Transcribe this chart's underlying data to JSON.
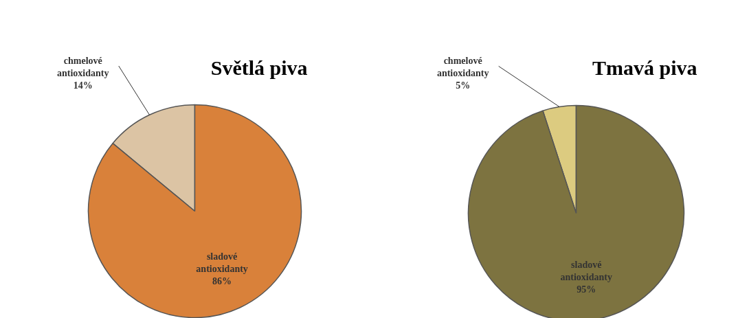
{
  "chart_data": [
    {
      "type": "pie",
      "title": "Světlá piva",
      "categories": [
        "chmelové antioxidanty",
        "sladové antioxidanty"
      ],
      "values": [
        14,
        86
      ],
      "value_labels": [
        "14%",
        "86%"
      ],
      "colors": [
        "#dcc4a4",
        "#d9813a"
      ]
    },
    {
      "type": "pie",
      "title": "Tmavá piva",
      "categories": [
        "chmelové antioxidanty",
        "sladové antioxidanty"
      ],
      "values": [
        5,
        95
      ],
      "value_labels": [
        "5%",
        "95%"
      ],
      "colors": [
        "#dccb80",
        "#7d7340"
      ]
    }
  ]
}
